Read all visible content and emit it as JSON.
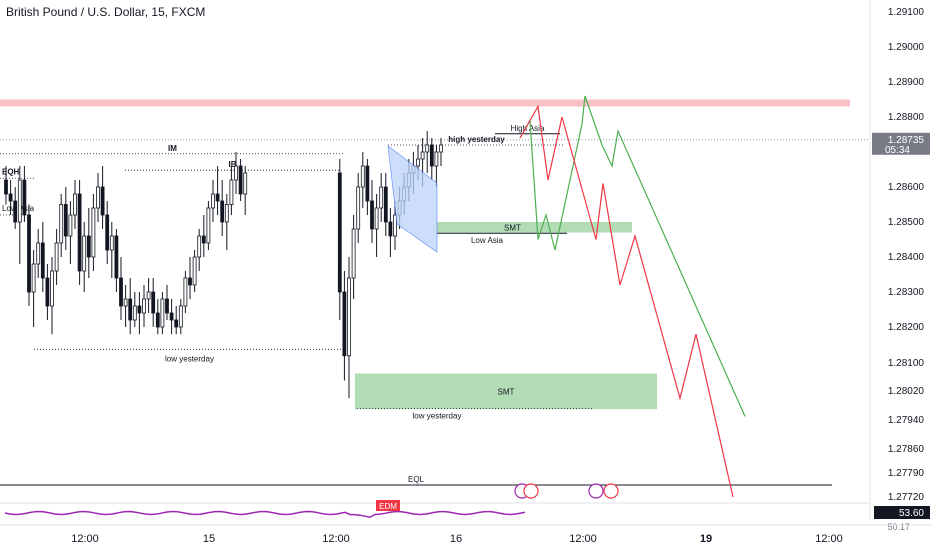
{
  "chart_data": {
    "type": "candlestick",
    "title": "British Pound / U.S. Dollar, 15, FXCM",
    "price_axis": {
      "ticks": [
        "1.29100",
        "1.29000",
        "1.28900",
        "1.28800",
        "1.28600",
        "1.28500",
        "1.28400",
        "1.28300",
        "1.28200",
        "1.28100",
        "1.28020",
        "1.27940",
        "1.27860",
        "1.27790",
        "1.27720"
      ],
      "tick_values": [
        1.291,
        1.29,
        1.289,
        1.288,
        1.286,
        1.285,
        1.284,
        1.283,
        1.282,
        1.281,
        1.2802,
        1.2794,
        1.2786,
        1.2779,
        1.2772
      ],
      "current_price": "1.28735",
      "countdown": "05:34",
      "oscillator_value": "53.60",
      "oscillator_lower": "50.17"
    },
    "time_axis": {
      "labels": [
        "12:00",
        "15",
        "12:00",
        "16",
        "12:00",
        "19",
        "12:00"
      ]
    },
    "candles": [
      [
        1.2862,
        1.2866,
        1.2855,
        1.2858
      ],
      [
        1.2858,
        1.2862,
        1.2852,
        1.2856
      ],
      [
        1.2856,
        1.286,
        1.2848,
        1.285
      ],
      [
        1.285,
        1.2866,
        1.2838,
        1.2862
      ],
      [
        1.2862,
        1.2866,
        1.285,
        1.2852
      ],
      [
        1.2852,
        1.2855,
        1.2826,
        1.283
      ],
      [
        1.283,
        1.2842,
        1.282,
        1.2838
      ],
      [
        1.2838,
        1.2848,
        1.2834,
        1.2844
      ],
      [
        1.2844,
        1.285,
        1.283,
        1.2834
      ],
      [
        1.2834,
        1.2838,
        1.2822,
        1.2826
      ],
      [
        1.2826,
        1.284,
        1.2818,
        1.2836
      ],
      [
        1.2836,
        1.2848,
        1.2832,
        1.2844
      ],
      [
        1.2844,
        1.2858,
        1.284,
        1.2855
      ],
      [
        1.2855,
        1.286,
        1.2842,
        1.2846
      ],
      [
        1.2846,
        1.2856,
        1.2838,
        1.2852
      ],
      [
        1.2852,
        1.2862,
        1.2848,
        1.2858
      ],
      [
        1.2858,
        1.2862,
        1.2832,
        1.2836
      ],
      [
        1.2836,
        1.285,
        1.283,
        1.2846
      ],
      [
        1.2846,
        1.2854,
        1.2834,
        1.284
      ],
      [
        1.284,
        1.2858,
        1.2836,
        1.2854
      ],
      [
        1.2854,
        1.2864,
        1.285,
        1.286
      ],
      [
        1.286,
        1.2866,
        1.2848,
        1.2852
      ],
      [
        1.2852,
        1.2856,
        1.2838,
        1.2842
      ],
      [
        1.2842,
        1.285,
        1.2834,
        1.2846
      ],
      [
        1.2846,
        1.2848,
        1.283,
        1.2834
      ],
      [
        1.2834,
        1.284,
        1.2822,
        1.2826
      ],
      [
        1.2826,
        1.2832,
        1.282,
        1.2828
      ],
      [
        1.2828,
        1.2834,
        1.2818,
        1.2822
      ],
      [
        1.2822,
        1.283,
        1.282,
        1.2826
      ],
      [
        1.2826,
        1.283,
        1.2818,
        1.2824
      ],
      [
        1.2824,
        1.2832,
        1.282,
        1.2828
      ],
      [
        1.2828,
        1.2834,
        1.2824,
        1.283
      ],
      [
        1.283,
        1.2834,
        1.282,
        1.2824
      ],
      [
        1.2824,
        1.2828,
        1.2818,
        1.282
      ],
      [
        1.282,
        1.283,
        1.2818,
        1.2828
      ],
      [
        1.2828,
        1.2832,
        1.2822,
        1.2824
      ],
      [
        1.2824,
        1.2828,
        1.2818,
        1.2822
      ],
      [
        1.2822,
        1.2826,
        1.2818,
        1.282
      ],
      [
        1.282,
        1.2828,
        1.2818,
        1.2826
      ],
      [
        1.2826,
        1.2836,
        1.2824,
        1.2834
      ],
      [
        1.2834,
        1.284,
        1.2828,
        1.2832
      ],
      [
        1.2832,
        1.2842,
        1.283,
        1.284
      ],
      [
        1.284,
        1.2848,
        1.2836,
        1.2846
      ],
      [
        1.2846,
        1.2852,
        1.284,
        1.2844
      ],
      [
        1.2844,
        1.2856,
        1.2842,
        1.2854
      ],
      [
        1.2854,
        1.2862,
        1.285,
        1.2858
      ],
      [
        1.2858,
        1.2866,
        1.2852,
        1.2856
      ],
      [
        1.2856,
        1.2862,
        1.2846,
        1.285
      ],
      [
        1.285,
        1.2858,
        1.2842,
        1.2855
      ],
      [
        1.2855,
        1.2866,
        1.2852,
        1.2862
      ],
      [
        1.2862,
        1.287,
        1.2858,
        1.2866
      ],
      [
        1.2866,
        1.2868,
        1.2856,
        1.2858
      ],
      [
        1.2858,
        1.2866,
        1.2852,
        1.2864
      ],
      [
        1.2864,
        1.2868,
        1.2822,
        1.283
      ],
      [
        1.283,
        1.2836,
        1.2805,
        1.2812
      ],
      [
        1.2812,
        1.284,
        1.28,
        1.2834
      ],
      [
        1.2834,
        1.2852,
        1.2828,
        1.2848
      ],
      [
        1.2848,
        1.2864,
        1.2844,
        1.286
      ],
      [
        1.286,
        1.287,
        1.2854,
        1.2866
      ],
      [
        1.2866,
        1.2868,
        1.2852,
        1.2856
      ],
      [
        1.2856,
        1.2862,
        1.2844,
        1.2848
      ],
      [
        1.2848,
        1.2858,
        1.284,
        1.2854
      ],
      [
        1.2854,
        1.2864,
        1.285,
        1.286
      ],
      [
        1.286,
        1.2864,
        1.2846,
        1.285
      ],
      [
        1.285,
        1.2854,
        1.284,
        1.2846
      ],
      [
        1.2846,
        1.2856,
        1.2842,
        1.2852
      ],
      [
        1.2852,
        1.286,
        1.2848,
        1.2856
      ],
      [
        1.2856,
        1.2864,
        1.2852,
        1.286
      ],
      [
        1.286,
        1.2868,
        1.2856,
        1.2864
      ],
      [
        1.2864,
        1.287,
        1.2858,
        1.2866
      ],
      [
        1.2866,
        1.2872,
        1.2862,
        1.2868
      ],
      [
        1.2868,
        1.2874,
        1.286,
        1.287
      ],
      [
        1.287,
        1.2876,
        1.2864,
        1.2872
      ],
      [
        1.2872,
        1.2874,
        1.2862,
        1.2866
      ],
      [
        1.2866,
        1.2872,
        1.286,
        1.287
      ],
      [
        1.287,
        1.2874,
        1.2866,
        1.2872
      ]
    ],
    "levels": [
      {
        "label": "EQH",
        "price": 1.28625
      },
      {
        "label": "IM",
        "price": 1.28695
      },
      {
        "label": "IB",
        "price": 1.28648
      },
      {
        "label": "Low Asia",
        "price": 1.2852
      },
      {
        "label": "low yesterday",
        "price": 1.28138
      },
      {
        "label": "high yesterday",
        "price": 1.2872
      },
      {
        "label": "High Asia",
        "price": 1.28752
      },
      {
        "label": "Low Asia",
        "price": 1.28468
      },
      {
        "label": "low yesterday",
        "price": 1.27972
      },
      {
        "label": "EQL",
        "price": 1.27755
      }
    ],
    "zones": [
      {
        "kind": "supply",
        "price_top": 1.2885,
        "price_bottom": 1.2883,
        "color": "#f8b6bb"
      },
      {
        "kind": "demand",
        "label": "SMT",
        "price_top": 1.285,
        "price_bottom": 1.2847,
        "color": "#a5d6a7"
      },
      {
        "kind": "demand",
        "label": "SMT",
        "price_top": 1.2807,
        "price_bottom": 1.2797,
        "color": "#a5d6a7"
      }
    ],
    "projections": {
      "bullish_then_bearish_green": [
        1.2874,
        1.2879,
        1.2845,
        1.2852,
        1.2842,
        1.2878,
        1.2886,
        1.2872,
        1.2866,
        1.2876,
        1.2795
      ],
      "bearish_red": [
        1.2874,
        1.2883,
        1.2862,
        1.288,
        1.2845,
        1.2861,
        1.2832,
        1.2846,
        1.28,
        1.2818,
        1.2772
      ]
    },
    "oscillator_label": "EDM",
    "colors": {
      "up": "#131722",
      "down": "#131722",
      "price_tag": "#787b86",
      "red": "#f23645",
      "green": "#4caf50",
      "purple": "#9c27b0"
    }
  }
}
